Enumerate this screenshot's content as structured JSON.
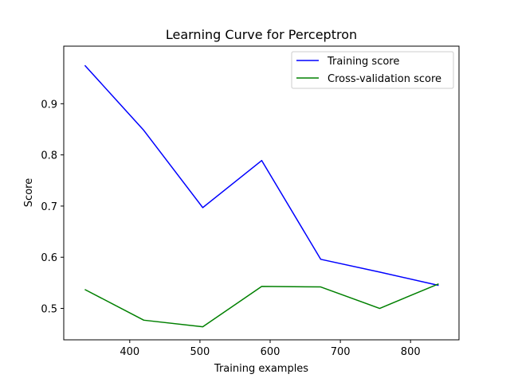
{
  "chart_data": {
    "type": "line",
    "title": "Learning Curve for Perceptron",
    "xlabel": "Training examples",
    "ylabel": "Score",
    "xlim": [
      306,
      869
    ],
    "ylim": [
      0.4386,
      1.0125
    ],
    "xticks": [
      400,
      500,
      600,
      700,
      800
    ],
    "yticks": [
      0.5,
      0.6,
      0.7,
      0.8,
      0.9
    ],
    "x": [
      336,
      420,
      504,
      588,
      672,
      756,
      840
    ],
    "series": [
      {
        "name": "Training score",
        "color": "#0000ff",
        "values": [
          0.975,
          0.848,
          0.697,
          0.789,
          0.596,
          0.571,
          0.545
        ]
      },
      {
        "name": "Cross-validation score",
        "color": "#008000",
        "values": [
          0.537,
          0.477,
          0.464,
          0.543,
          0.542,
          0.5,
          0.548
        ]
      }
    ],
    "legend": "top-right",
    "grid": false
  }
}
